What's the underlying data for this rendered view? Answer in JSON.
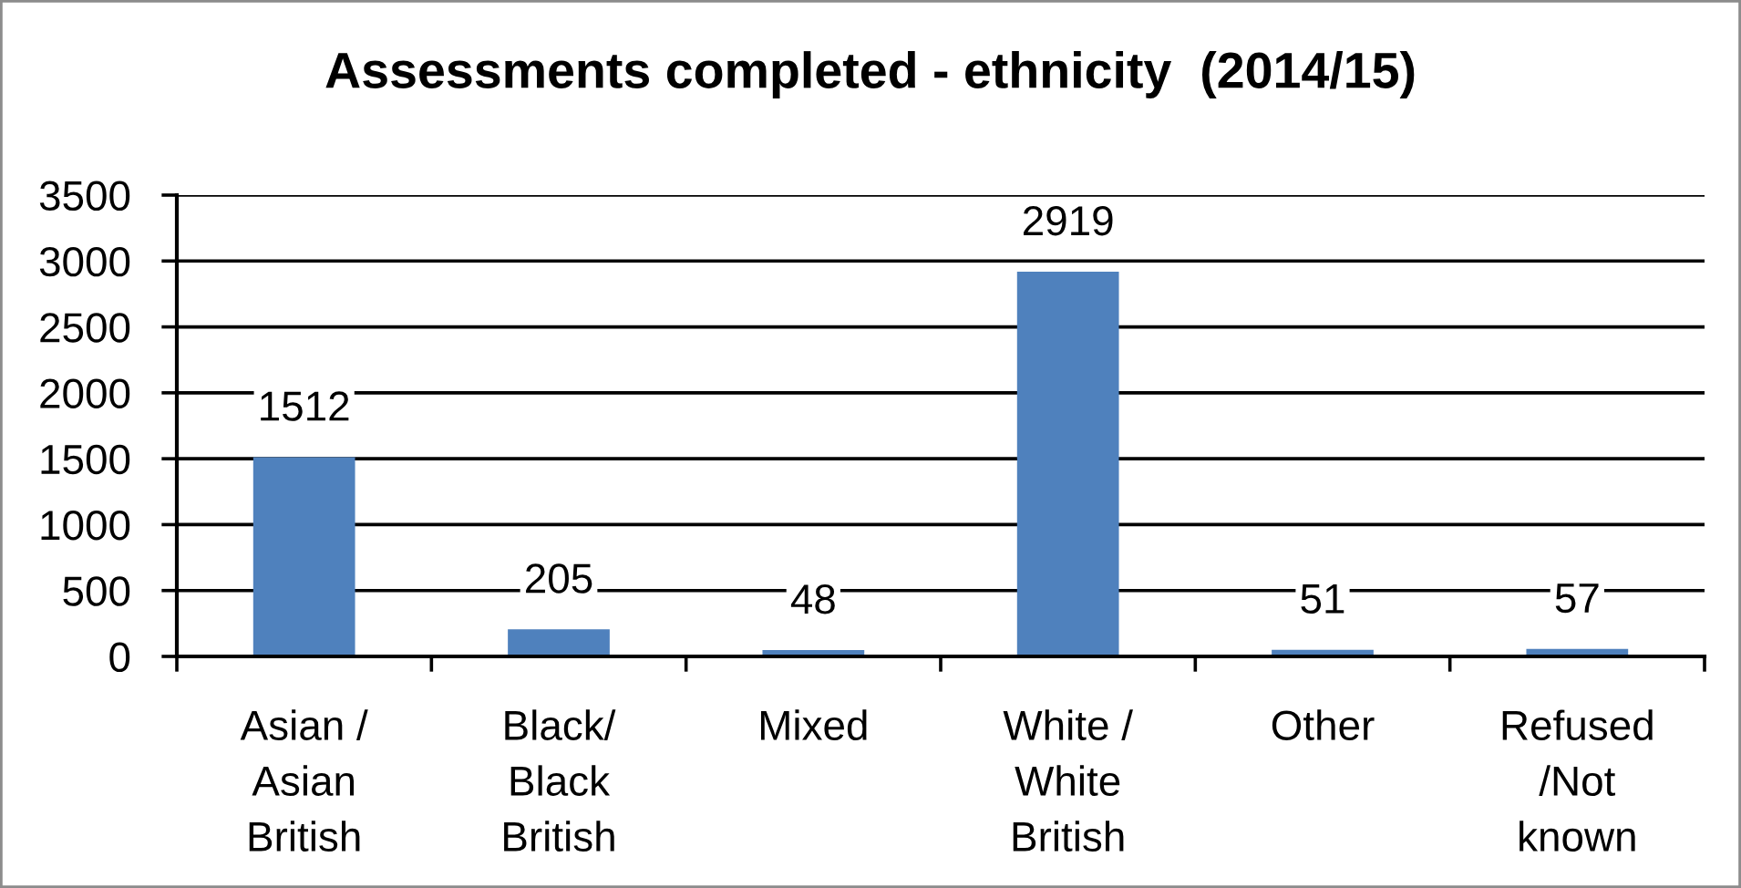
{
  "chart_data": {
    "type": "bar",
    "title": "Assessments completed - ethnicity  (2014/15)",
    "categories": [
      "Asian /\nAsian\nBritish",
      "Black/\nBlack\nBritish",
      "Mixed",
      "White /\nWhite\nBritish",
      "Other",
      "Refused\n/Not\nknown"
    ],
    "values": [
      1512,
      205,
      48,
      2919,
      51,
      57
    ],
    "color": "#4f81bd",
    "ylim": [
      0,
      3500
    ],
    "yticks": [
      0,
      500,
      1000,
      1500,
      2000,
      2500,
      3000,
      3500
    ],
    "grid": "y",
    "data_labels": true
  }
}
